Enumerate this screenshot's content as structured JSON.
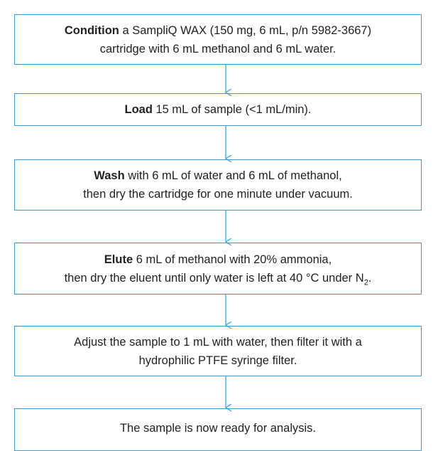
{
  "steps": [
    {
      "keyword": "Condition",
      "line1": "a SampliQ WAX (150 mg, 6 mL, p/n 5982-3667)",
      "line2": "cartridge with 6 mL methanol and 6 mL water."
    },
    {
      "keyword": "Load",
      "line1": "15 mL of sample (<1 mL/min)."
    },
    {
      "keyword": "Wash",
      "line1": "with 6 mL of water and 6 mL of methanol,",
      "line2": "then dry the cartridge for one minute under vacuum."
    },
    {
      "keyword": "Elute",
      "line1": "6 mL of methanol with 20% ammonia,",
      "line2": "then dry the eluent until only water is left at 40 °C under N",
      "subscript": "2",
      "tail": "."
    },
    {
      "line1": "Adjust the sample to 1 mL with water, then filter it with a",
      "line2": "hydrophilic PTFE syringe filter."
    },
    {
      "line1": "The sample is now ready for analysis."
    }
  ]
}
